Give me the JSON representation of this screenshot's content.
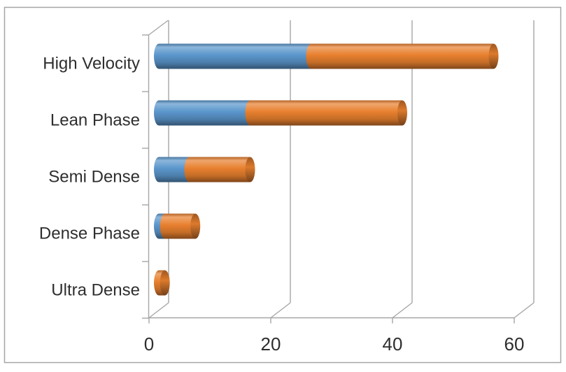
{
  "chart": {
    "background": "#ffffff",
    "border_color": "#a6a6a6",
    "line_color": "#a6a6a6",
    "text_color": "#2e2e2e"
  },
  "chart_data": {
    "type": "bar",
    "subtype": "3d-cylinder-horizontal-stacked",
    "title": "",
    "xlabel": "",
    "ylabel": "",
    "categories": [
      "High Velocity",
      "Lean Phase",
      "Semi Dense",
      "Dense Phase",
      "Ultra Dense"
    ],
    "series": [
      {
        "name": "blue",
        "color": "#5b96cc",
        "values": [
          25,
          15,
          5,
          1,
          0
        ]
      },
      {
        "name": "orange",
        "color": "#e8802f",
        "values": [
          30,
          25,
          10,
          5,
          1
        ]
      }
    ],
    "stacked_totals": [
      55,
      40,
      15,
      6,
      1
    ],
    "x_ticks": [
      "0",
      "20",
      "40",
      "60"
    ],
    "x_tick_values": [
      0,
      20,
      40,
      60
    ],
    "xlim": [
      0,
      60
    ],
    "grid": true,
    "legend": "none"
  }
}
